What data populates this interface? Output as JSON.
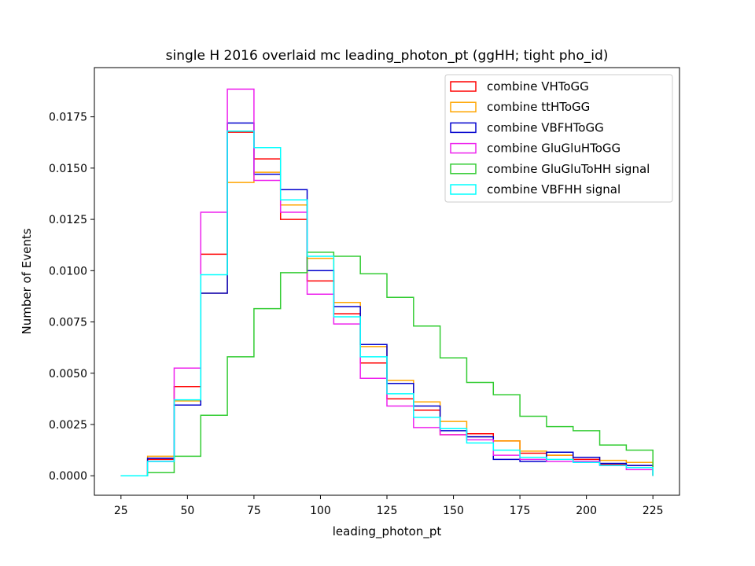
{
  "chart_data": {
    "type": "step-histogram",
    "title": "single H 2016 overlaid mc leading_photon_pt (ggHH; tight pho_id)",
    "xlabel": "leading_photon_pt",
    "ylabel": "Number of Events",
    "xlim": [
      15,
      235
    ],
    "ylim": [
      -0.00095,
      0.0199
    ],
    "xticks": [
      25,
      50,
      75,
      100,
      125,
      150,
      175,
      200,
      225
    ],
    "yticks": [
      0.0,
      0.0025,
      0.005,
      0.0075,
      0.01,
      0.0125,
      0.015,
      0.0175
    ],
    "ytick_labels": [
      "0.0000",
      "0.0025",
      "0.0050",
      "0.0075",
      "0.0100",
      "0.0125",
      "0.0150",
      "0.0175"
    ],
    "bin_edges": [
      25,
      35,
      45,
      55,
      65,
      75,
      85,
      95,
      105,
      115,
      125,
      135,
      145,
      155,
      165,
      175,
      185,
      195,
      205,
      215,
      225
    ],
    "legend_position": "top-right",
    "grid": false,
    "series": [
      {
        "name": "combine VHToGG",
        "color": "#ff0000",
        "values": [
          0.0,
          0.0008,
          0.00435,
          0.0108,
          0.01675,
          0.01545,
          0.0125,
          0.0095,
          0.0079,
          0.0055,
          0.00375,
          0.0032,
          0.002,
          0.00205,
          0.0017,
          0.0011,
          0.001,
          0.0008,
          0.00055,
          0.0005
        ]
      },
      {
        "name": "combine ttHToGG",
        "color": "#ffa500",
        "values": [
          0.0,
          0.00095,
          0.00365,
          0.0089,
          0.0143,
          0.0148,
          0.0132,
          0.0106,
          0.00845,
          0.0063,
          0.00465,
          0.0036,
          0.00265,
          0.0019,
          0.0017,
          0.0012,
          0.001,
          0.0009,
          0.00075,
          0.00065
        ]
      },
      {
        "name": "combine VBFHToGG",
        "color": "#0000cd",
        "values": [
          0.0,
          0.00085,
          0.00345,
          0.0089,
          0.0172,
          0.0147,
          0.01395,
          0.01,
          0.00825,
          0.0064,
          0.0045,
          0.0034,
          0.0022,
          0.0019,
          0.0008,
          0.0007,
          0.00115,
          0.0009,
          0.0006,
          0.0005
        ]
      },
      {
        "name": "combine GluGluHToGG",
        "color": "#ee22ee",
        "values": [
          0.0,
          0.0007,
          0.00525,
          0.01285,
          0.01885,
          0.0144,
          0.01285,
          0.00885,
          0.0074,
          0.00475,
          0.0034,
          0.00235,
          0.002,
          0.00175,
          0.001,
          0.0008,
          0.0007,
          0.0007,
          0.0005,
          0.0003
        ]
      },
      {
        "name": "combine GluGluToHH signal",
        "color": "#33cc33",
        "values": [
          0.0,
          0.00015,
          0.00095,
          0.00295,
          0.0058,
          0.00815,
          0.0099,
          0.0109,
          0.0107,
          0.00985,
          0.0087,
          0.0073,
          0.00575,
          0.00455,
          0.00395,
          0.0029,
          0.0024,
          0.0022,
          0.0015,
          0.00125
        ]
      },
      {
        "name": "combine VBFHH signal",
        "color": "#00ffff",
        "values": [
          0.0,
          0.0007,
          0.0037,
          0.0098,
          0.0168,
          0.016,
          0.01345,
          0.0107,
          0.00775,
          0.0058,
          0.004,
          0.00285,
          0.0023,
          0.0016,
          0.00125,
          0.0009,
          0.0008,
          0.00065,
          0.0005,
          0.0004
        ]
      }
    ]
  }
}
